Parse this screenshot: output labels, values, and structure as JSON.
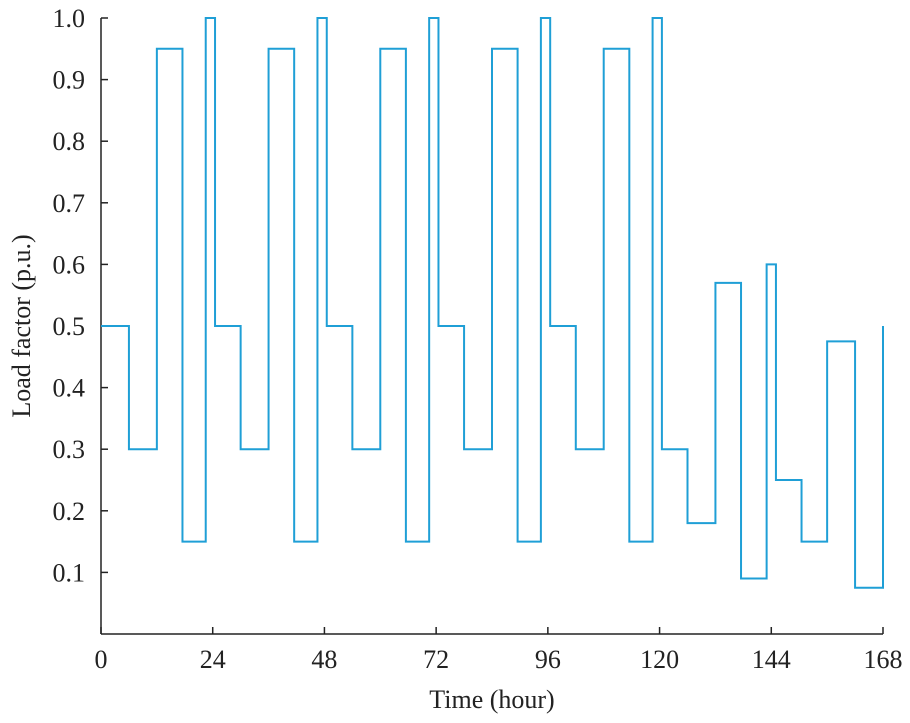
{
  "chart_data": {
    "type": "line",
    "title": "",
    "xlabel": "Time (hour)",
    "ylabel": "Load factor (p.u.)",
    "xlim": [
      0,
      168
    ],
    "ylim": [
      0,
      1.0
    ],
    "x_ticks": [
      "0",
      "24",
      "48",
      "72",
      "96",
      "120",
      "144",
      "168"
    ],
    "y_ticks": [
      "0.1",
      "0.2",
      "0.3",
      "0.4",
      "0.5",
      "0.6",
      "0.7",
      "0.8",
      "0.9",
      "1.0"
    ],
    "grid": false,
    "step": true,
    "line_color": "#1f9fd6",
    "x": [
      0,
      6,
      12,
      17.5,
      22.5,
      24.5,
      30,
      36,
      41.5,
      46.5,
      48.5,
      54,
      60,
      65.5,
      70.5,
      72.5,
      78,
      84,
      89.5,
      94.5,
      96.5,
      102,
      108,
      113.5,
      118.5,
      120.5,
      126,
      132,
      137.5,
      143,
      145,
      150.5,
      156,
      162,
      168
    ],
    "y": [
      0.5,
      0.3,
      0.95,
      0.15,
      1.0,
      0.5,
      0.3,
      0.95,
      0.15,
      1.0,
      0.5,
      0.3,
      0.95,
      0.15,
      1.0,
      0.5,
      0.3,
      0.95,
      0.15,
      1.0,
      0.5,
      0.3,
      0.95,
      0.15,
      1.0,
      0.3,
      0.18,
      0.57,
      0.09,
      0.6,
      0.25,
      0.15,
      0.475,
      0.075,
      0.5
    ]
  }
}
